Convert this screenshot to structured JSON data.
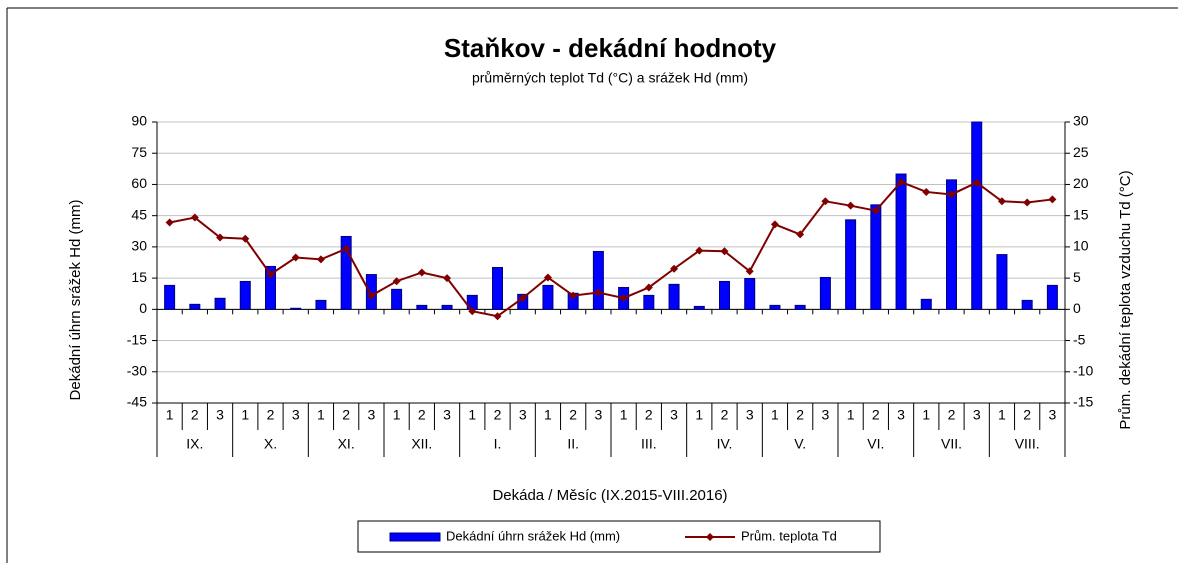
{
  "chart_data": {
    "type": "bar_line",
    "title": "Staňkov - dekádní hodnoty",
    "subtitle": "průměrných teplot Td (°C) a srážek Hd (mm)",
    "x_label": "Dekáda / Měsíc (IX.2015-VIII.2016)",
    "y_label": "Dekádní úhrn srážek Hd (mm)",
    "y2_label": "Prům. dekádní teplota vzduchu Td (°C)",
    "categories": [
      "1",
      "2",
      "3",
      "1",
      "2",
      "3",
      "1",
      "2",
      "3",
      "1",
      "2",
      "3",
      "1",
      "2",
      "3",
      "1",
      "2",
      "3",
      "1",
      "2",
      "3",
      "1",
      "2",
      "3",
      "1",
      "2",
      "3",
      "1",
      "2",
      "3",
      "1",
      "2",
      "3",
      "1",
      "2",
      "3"
    ],
    "groups": [
      "IX.",
      "X.",
      "XI.",
      "XII.",
      "I.",
      "II.",
      "III.",
      "IV.",
      "V.",
      "VI.",
      "VII.",
      "VIII."
    ],
    "series": [
      {
        "name": "Dekádní úhrn srážek Hd (mm)",
        "type": "bar",
        "color": "#0000ff",
        "values": [
          11.5,
          2.4,
          5.3,
          13.4,
          20.6,
          0.5,
          4.3,
          35,
          16.7,
          9.6,
          1.9,
          1.9,
          6.7,
          20.1,
          7.2,
          11.5,
          7.7,
          27.8,
          10.5,
          6.7,
          12,
          1.4,
          13.4,
          14.8,
          1.9,
          1.9,
          15.3,
          43,
          50.2,
          65,
          4.8,
          62.2,
          90,
          26.3,
          4.3,
          11.5
        ]
      },
      {
        "name": "Prům. teplota Td",
        "type": "line",
        "axis": "y2",
        "color": "#800000",
        "values": [
          13.9,
          14.7,
          11.5,
          11.3,
          5.6,
          8.3,
          8,
          9.7,
          2.2,
          4.5,
          5.9,
          5,
          -0.3,
          -1.1,
          1.8,
          5.1,
          2.2,
          2.7,
          1.8,
          3.5,
          6.5,
          9.4,
          9.3,
          6.1,
          13.6,
          12,
          17.3,
          16.6,
          15.8,
          20.4,
          18.8,
          18.4,
          20.3,
          17.3,
          17.1,
          17.6
        ]
      }
    ],
    "ylim": [
      -45,
      90
    ],
    "yticks": [
      -45,
      -30,
      -15,
      0,
      15,
      30,
      45,
      60,
      75,
      90
    ],
    "y2lim": [
      -15,
      30
    ],
    "y2ticks": [
      -15,
      -10,
      -5,
      0,
      5,
      10,
      15,
      20,
      25,
      30
    ],
    "grid": true,
    "legend": "bottom"
  }
}
